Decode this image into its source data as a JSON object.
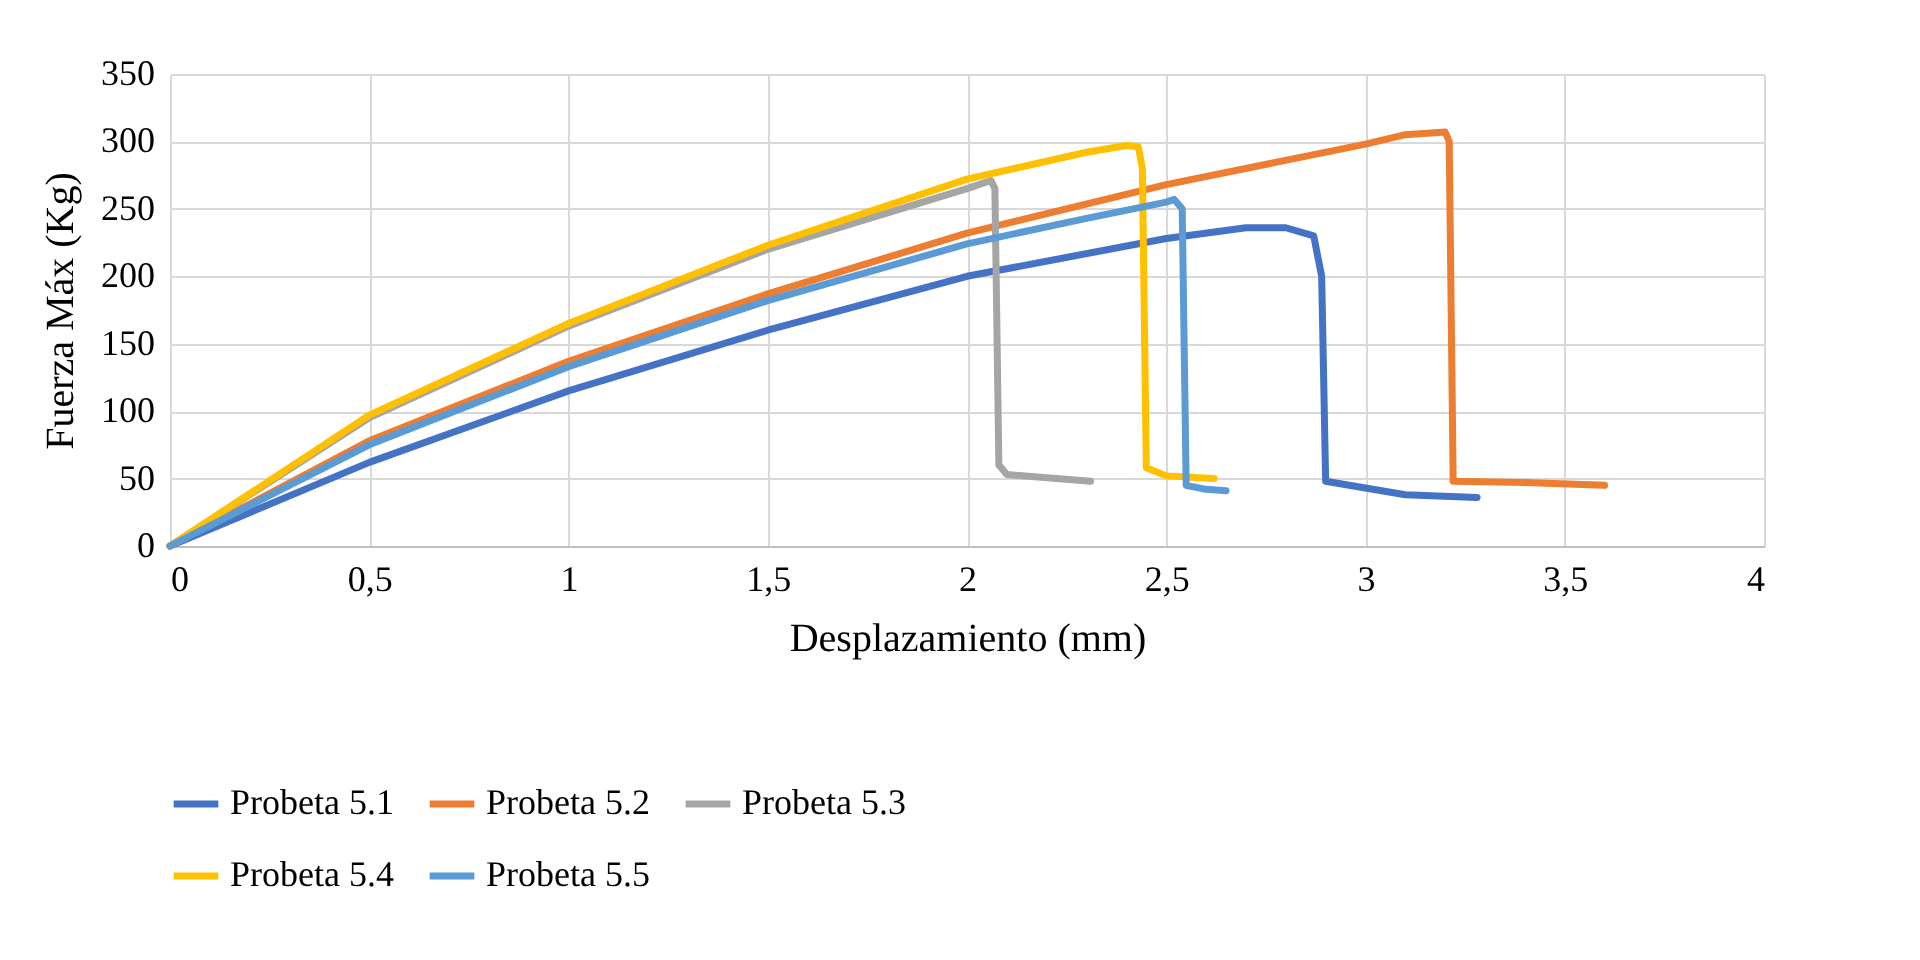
{
  "chart_data": {
    "type": "line",
    "xlabel": "Desplazamiento (mm)",
    "ylabel": "Fuerza Máx (Kg)",
    "xlim": [
      0,
      4
    ],
    "ylim": [
      0,
      350
    ],
    "xticks": [
      0,
      {
        "value": 0.5,
        "label": "0,5"
      },
      1,
      {
        "value": 1.5,
        "label": "1,5"
      },
      2,
      {
        "value": 2.5,
        "label": "2,5"
      },
      3,
      {
        "value": 3.5,
        "label": "3,5"
      },
      4
    ],
    "yticks": [
      0,
      50,
      100,
      150,
      200,
      250,
      300,
      350
    ],
    "grid": true,
    "legend": "bottom",
    "line_style": "solid",
    "marker": "none",
    "series": [
      {
        "name": "Probeta 5.1",
        "color": "#4472c4",
        "x": [
          0,
          0.5,
          1,
          1.5,
          2,
          2.5,
          2.7,
          2.8,
          2.87,
          2.89,
          2.9,
          3.0,
          3.1,
          3.28
        ],
        "values": [
          0,
          62,
          115,
          160,
          200,
          228,
          236,
          236,
          230,
          200,
          48,
          43,
          38,
          36
        ]
      },
      {
        "name": "Probeta 5.2",
        "color": "#ed7d31",
        "x": [
          0,
          0.5,
          1,
          1.5,
          2,
          2.5,
          3,
          3.1,
          3.2,
          3.21,
          3.22,
          3.4,
          3.6
        ],
        "values": [
          0,
          78,
          137,
          187,
          232,
          268,
          298,
          305,
          307,
          300,
          48,
          47,
          45
        ]
      },
      {
        "name": "Probeta 5.3",
        "color": "#a5a5a5",
        "x": [
          0,
          0.5,
          1,
          1.5,
          2,
          2.06,
          2.07,
          2.08,
          2.1,
          2.31
        ],
        "values": [
          0,
          95,
          163,
          220,
          265,
          271,
          265,
          60,
          53,
          48
        ]
      },
      {
        "name": "Probeta 5.4",
        "color": "#ffc000",
        "x": [
          0,
          0.5,
          1,
          1.5,
          2,
          2.3,
          2.4,
          2.43,
          2.44,
          2.45,
          2.5,
          2.62
        ],
        "values": [
          0,
          97,
          165,
          223,
          272,
          292,
          297,
          296,
          280,
          58,
          52,
          50
        ]
      },
      {
        "name": "Probeta 5.5",
        "color": "#5b9bd5",
        "x": [
          0,
          0.5,
          1,
          1.5,
          2,
          2.3,
          2.5,
          2.52,
          2.54,
          2.55,
          2.6,
          2.65
        ],
        "values": [
          0,
          75,
          133,
          182,
          224,
          243,
          255,
          257,
          250,
          45,
          42,
          41
        ]
      }
    ]
  }
}
